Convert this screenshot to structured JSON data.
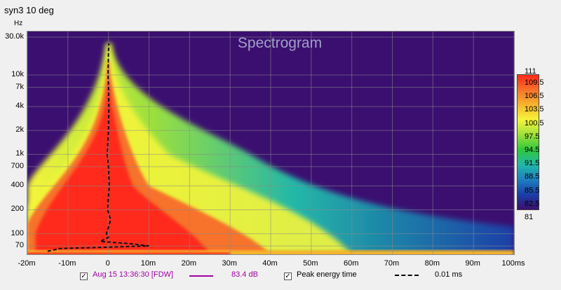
{
  "window_title": "syn3 10 deg",
  "legend": {
    "measurement_label": "Aug 15 13:36:30 [FDW]",
    "measurement_value": "83.4 dB",
    "measurement_color": "#a000a0",
    "peak_label": "Peak energy time",
    "peak_value": "0.01 ms",
    "measurement_checked": true,
    "peak_checked": true
  },
  "chart_data": {
    "type": "heatmap",
    "title": "Spectrogram",
    "yunit": "Hz",
    "y_scale": "log",
    "ylim": [
      55,
      30000
    ],
    "xlim": [
      -20,
      100
    ],
    "xticks": [
      {
        "v": -20,
        "label": "-20m"
      },
      {
        "v": -10,
        "label": "-10m"
      },
      {
        "v": 0,
        "label": "0"
      },
      {
        "v": 10,
        "label": "10m"
      },
      {
        "v": 20,
        "label": "20m"
      },
      {
        "v": 30,
        "label": "30m"
      },
      {
        "v": 40,
        "label": "40m"
      },
      {
        "v": 50,
        "label": "50m"
      },
      {
        "v": 60,
        "label": "60m"
      },
      {
        "v": 70,
        "label": "70m"
      },
      {
        "v": 80,
        "label": "80m"
      },
      {
        "v": 90,
        "label": "90m"
      },
      {
        "v": 100,
        "label": "100ms"
      }
    ],
    "yticks": [
      {
        "v": 30000,
        "label": "30.0k"
      },
      {
        "v": 10000,
        "label": "10k"
      },
      {
        "v": 7000,
        "label": "7k"
      },
      {
        "v": 4000,
        "label": "4k"
      },
      {
        "v": 2000,
        "label": "2k"
      },
      {
        "v": 1000,
        "label": "1k"
      },
      {
        "v": 700,
        "label": "700"
      },
      {
        "v": 400,
        "label": "400"
      },
      {
        "v": 200,
        "label": "200"
      },
      {
        "v": 100,
        "label": "100"
      },
      {
        "v": 70,
        "label": "70"
      }
    ],
    "colorbar": {
      "min": 81,
      "max": 111,
      "max_label": "111",
      "min_label": "81",
      "ticks": [
        "109.5",
        "106.5",
        "103.5",
        "100.5",
        "97.5",
        "94.5",
        "91.5",
        "88.5",
        "85.5",
        "82.5"
      ],
      "colors": [
        "#3b0f70",
        "#1a3ea8",
        "#1f7fc0",
        "#22b7a8",
        "#2fc83c",
        "#9ee03c",
        "#f5f53a",
        "#f7b52c",
        "#f7722a",
        "#ff2a1a"
      ]
    },
    "peak_energy_time": {
      "freq": [
        60,
        65,
        70,
        75,
        80,
        90,
        100,
        120,
        150,
        200,
        300,
        400,
        700,
        1000,
        2000,
        4000,
        7000,
        10000,
        20000,
        25000
      ],
      "time_ms": [
        -15,
        -12,
        10,
        5,
        -2,
        0,
        -0.5,
        0,
        0.5,
        -0.2,
        0,
        0.2,
        0,
        -0.3,
        0,
        0.1,
        0,
        -0.1,
        0,
        0.1
      ]
    }
  }
}
